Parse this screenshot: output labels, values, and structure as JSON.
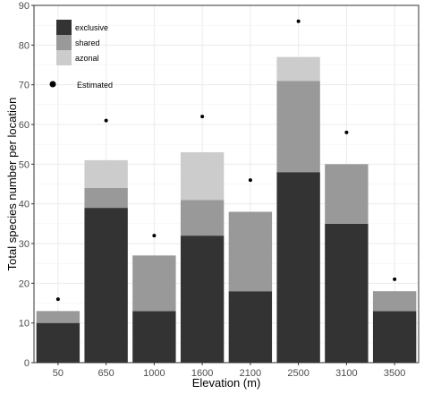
{
  "chart_data": {
    "type": "bar",
    "stacked": true,
    "xlabel": "Elevation (m)",
    "ylabel": "Total species number per location",
    "ylim": [
      0,
      90
    ],
    "yticks": [
      0,
      10,
      20,
      30,
      40,
      50,
      60,
      70,
      80,
      90
    ],
    "grid": true,
    "legend_position": "top-left",
    "categories": [
      "50",
      "650",
      "1000",
      "1600",
      "2100",
      "2500",
      "3100",
      "3500"
    ],
    "series": [
      {
        "name": "exclusive",
        "color": "#333333",
        "values": [
          10,
          39,
          13,
          32,
          18,
          48,
          35,
          13
        ]
      },
      {
        "name": "shared",
        "color": "#999999",
        "values": [
          3,
          5,
          14,
          9,
          20,
          23,
          15,
          5
        ]
      },
      {
        "name": "azonal",
        "color": "#cccccc",
        "values": [
          0,
          7,
          0,
          12,
          0,
          6,
          0,
          0
        ]
      }
    ],
    "estimated": {
      "name": "Estimated",
      "values": [
        16,
        61,
        32,
        62,
        46,
        86,
        58,
        21
      ]
    }
  }
}
